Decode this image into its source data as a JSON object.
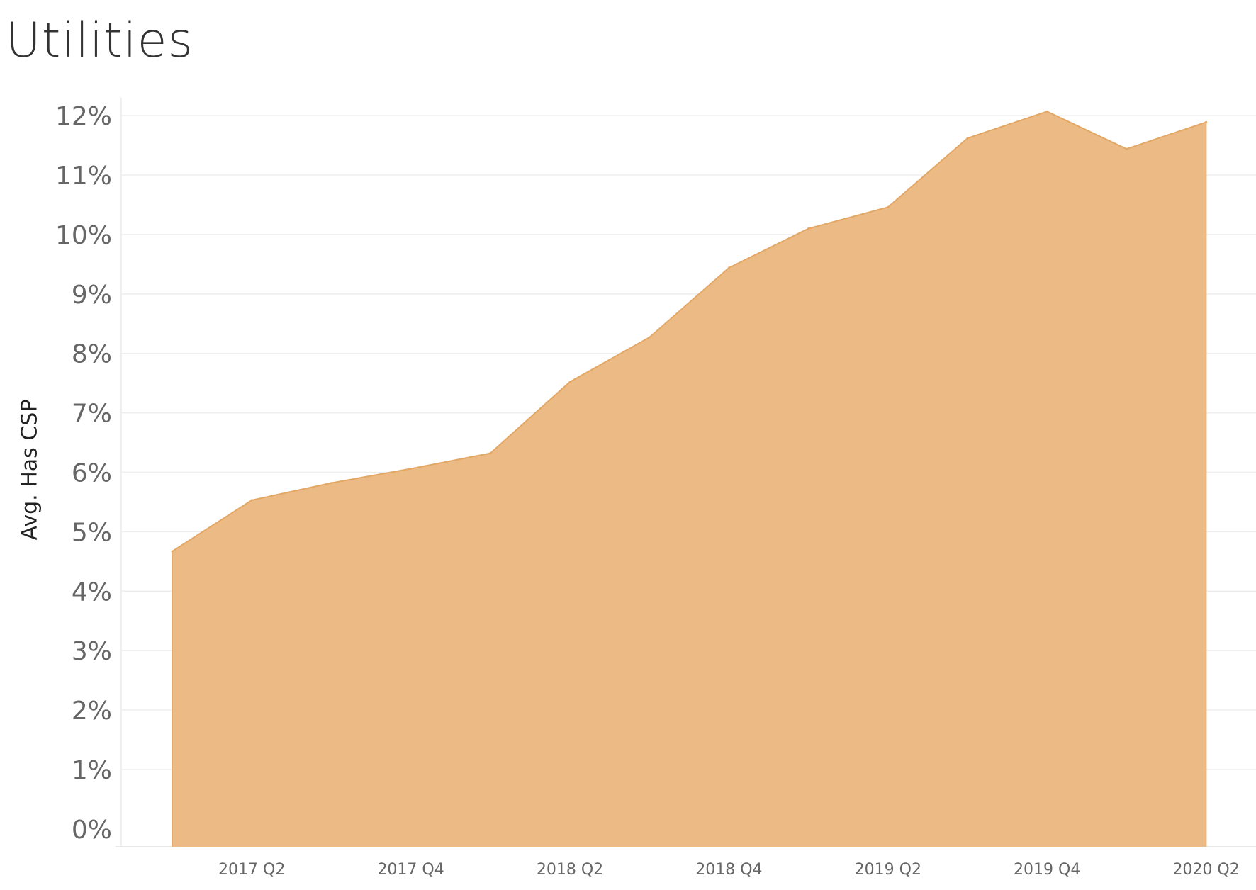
{
  "chart_data": {
    "type": "area",
    "title": "Utilities",
    "xlabel": "",
    "ylabel": "Avg. Has CSP",
    "x": [
      "2017 Q1",
      "2017 Q2",
      "2017 Q3",
      "2017 Q4",
      "2018 Q1",
      "2018 Q2",
      "2018 Q3",
      "2018 Q4",
      "2019 Q1",
      "2019 Q2",
      "2019 Q3",
      "2019 Q4",
      "2020 Q1",
      "2020 Q2"
    ],
    "x_tick_labels": [
      "2017 Q2",
      "2017 Q4",
      "2018 Q2",
      "2018 Q4",
      "2019 Q2",
      "2019 Q4",
      "2020 Q2"
    ],
    "series": [
      {
        "values": [
          4.67,
          5.53,
          5.82,
          6.06,
          6.32,
          7.52,
          8.27,
          9.44,
          10.1,
          10.46,
          11.62,
          12.07,
          11.44,
          11.89
        ]
      }
    ],
    "y_tick_labels": [
      "0%",
      "1%",
      "2%",
      "3%",
      "4%",
      "5%",
      "6%",
      "7%",
      "8%",
      "9%",
      "10%",
      "11%",
      "12%"
    ],
    "ylim": [
      -0.3,
      12.3
    ],
    "grid": true,
    "legend": "none",
    "fill_color": "#ECBB85",
    "line_color": "#E3A765"
  }
}
